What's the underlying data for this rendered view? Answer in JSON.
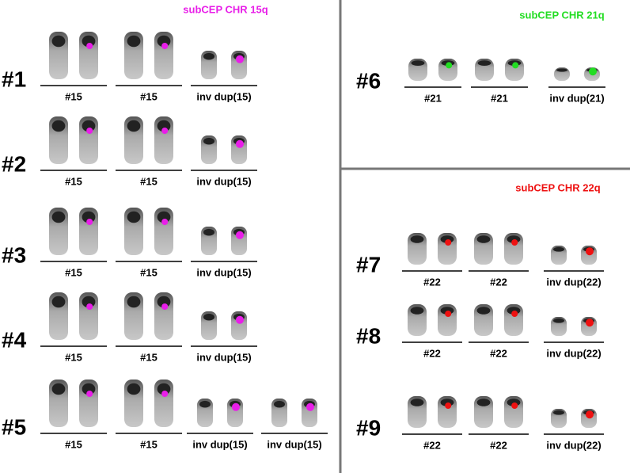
{
  "panels": [
    {
      "title": "subCEP CHR 15q",
      "rows": [
        {
          "label": "#1",
          "items": [
            "#15",
            "#15",
            "inv dup(15)"
          ]
        },
        {
          "label": "#2",
          "items": [
            "#15",
            "#15",
            "inv dup(15)"
          ]
        },
        {
          "label": "#3",
          "items": [
            "#15",
            "#15",
            "inv dup(15)"
          ]
        },
        {
          "label": "#4",
          "items": [
            "#15",
            "#15",
            "inv dup(15)"
          ]
        },
        {
          "label": "#5",
          "items": [
            "#15",
            "#15",
            "inv dup(15)",
            "inv dup(15)"
          ]
        }
      ]
    },
    {
      "title": "subCEP CHR 21q",
      "rows": [
        {
          "label": "#6",
          "items": [
            "#21",
            "#21",
            "inv dup(21)"
          ]
        }
      ]
    },
    {
      "title": "subCEP CHR 22q",
      "rows": [
        {
          "label": "#7",
          "items": [
            "#22",
            "#22",
            "inv dup(22)"
          ]
        },
        {
          "label": "#8",
          "items": [
            "#22",
            "#22",
            "inv dup(22)"
          ]
        },
        {
          "label": "#9",
          "items": [
            "#22",
            "#22",
            "inv dup(22)"
          ]
        }
      ]
    }
  ]
}
